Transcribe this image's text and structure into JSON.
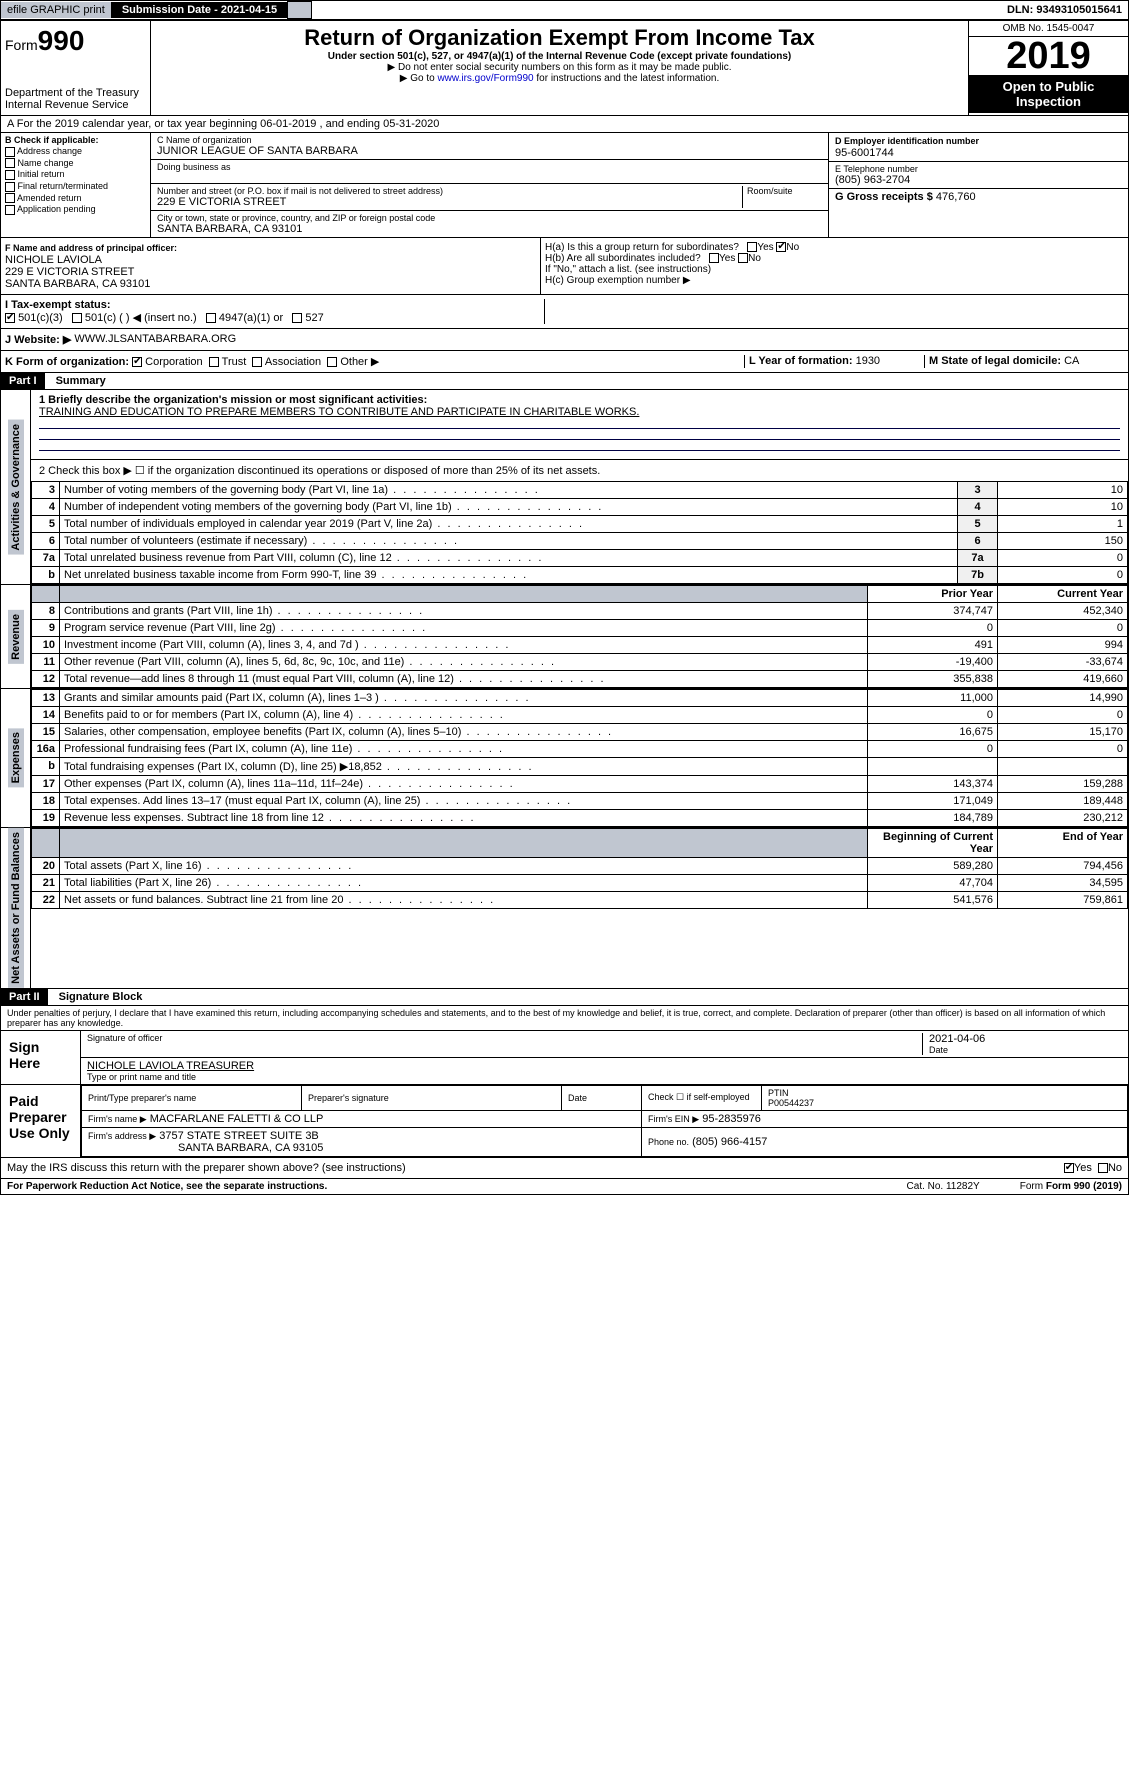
{
  "topbar": {
    "efile": "efile GRAPHIC print",
    "sub_label": "Submission Date - 2021-04-15",
    "dln": "DLN: 93493105015641"
  },
  "header": {
    "form_label": "Form",
    "form_num": "990",
    "dept": "Department of the Treasury",
    "irs": "Internal Revenue Service",
    "title": "Return of Organization Exempt From Income Tax",
    "subtitle": "Under section 501(c), 527, or 4947(a)(1) of the Internal Revenue Code (except private foundations)",
    "note1": "▶ Do not enter social security numbers on this form as it may be made public.",
    "note2_pre": "▶ Go to ",
    "note2_link": "www.irs.gov/Form990",
    "note2_post": " for instructions and the latest information.",
    "omb": "OMB No. 1545-0047",
    "year": "2019",
    "open": "Open to Public Inspection"
  },
  "line_a": "A For the 2019 calendar year, or tax year beginning 06-01-2019  , and ending 05-31-2020",
  "section_b": {
    "label": "B Check if applicable:",
    "items": [
      "Address change",
      "Name change",
      "Initial return",
      "Final return/terminated",
      "Amended return",
      "Application pending"
    ]
  },
  "section_c": {
    "name_label": "C Name of organization",
    "name": "JUNIOR LEAGUE OF SANTA BARBARA",
    "dba_label": "Doing business as",
    "dba": "",
    "addr_label": "Number and street (or P.O. box if mail is not delivered to street address)",
    "room_label": "Room/suite",
    "addr": "229 E VICTORIA STREET",
    "city_label": "City or town, state or province, country, and ZIP or foreign postal code",
    "city": "SANTA BARBARA, CA  93101"
  },
  "section_d": {
    "label": "D Employer identification number",
    "value": "95-6001744"
  },
  "section_e": {
    "label": "E Telephone number",
    "value": "(805) 963-2704"
  },
  "section_g": {
    "label": "G Gross receipts $",
    "value": "476,760"
  },
  "section_f": {
    "label": "F Name and address of principal officer:",
    "name": "NICHOLE LAVIOLA",
    "addr1": "229 E VICTORIA STREET",
    "addr2": "SANTA BARBARA, CA  93101"
  },
  "section_h": {
    "a": "H(a)  Is this a group return for subordinates?",
    "b": "H(b)  Are all subordinates included?",
    "b_note": "If \"No,\" attach a list. (see instructions)",
    "c": "H(c)  Group exemption number ▶"
  },
  "section_i": {
    "label": "I  Tax-exempt status:",
    "opts": [
      "501(c)(3)",
      "501(c) (   ) ◀ (insert no.)",
      "4947(a)(1) or",
      "527"
    ]
  },
  "section_j": {
    "label": "J  Website: ▶",
    "value": "WWW.JLSANTABARBARA.ORG"
  },
  "section_k": {
    "label": "K Form of organization:",
    "opts": [
      "Corporation",
      "Trust",
      "Association",
      "Other ▶"
    ],
    "l_label": "L Year of formation:",
    "l_val": "1930",
    "m_label": "M State of legal domicile:",
    "m_val": "CA"
  },
  "part1": {
    "header": "Part I",
    "title": "Summary",
    "q1_label": "1  Briefly describe the organization's mission or most significant activities:",
    "q1_text": "TRAINING AND EDUCATION TO PREPARE MEMBERS TO CONTRIBUTE AND PARTICIPATE IN CHARITABLE WORKS.",
    "q2": "2  Check this box ▶ ☐  if the organization discontinued its operations or disposed of more than 25% of its net assets.",
    "rows_gov": [
      {
        "n": "3",
        "t": "Number of voting members of the governing body (Part VI, line 1a)",
        "b": "3",
        "v": "10"
      },
      {
        "n": "4",
        "t": "Number of independent voting members of the governing body (Part VI, line 1b)",
        "b": "4",
        "v": "10"
      },
      {
        "n": "5",
        "t": "Total number of individuals employed in calendar year 2019 (Part V, line 2a)",
        "b": "5",
        "v": "1"
      },
      {
        "n": "6",
        "t": "Total number of volunteers (estimate if necessary)",
        "b": "6",
        "v": "150"
      },
      {
        "n": "7a",
        "t": "Total unrelated business revenue from Part VIII, column (C), line 12",
        "b": "7a",
        "v": "0"
      },
      {
        "n": "b",
        "t": "Net unrelated business taxable income from Form 990-T, line 39",
        "b": "7b",
        "v": "0"
      }
    ],
    "col_py": "Prior Year",
    "col_cy": "Current Year",
    "rows_rev": [
      {
        "n": "8",
        "t": "Contributions and grants (Part VIII, line 1h)",
        "py": "374,747",
        "cy": "452,340"
      },
      {
        "n": "9",
        "t": "Program service revenue (Part VIII, line 2g)",
        "py": "0",
        "cy": "0"
      },
      {
        "n": "10",
        "t": "Investment income (Part VIII, column (A), lines 3, 4, and 7d )",
        "py": "491",
        "cy": "994"
      },
      {
        "n": "11",
        "t": "Other revenue (Part VIII, column (A), lines 5, 6d, 8c, 9c, 10c, and 11e)",
        "py": "-19,400",
        "cy": "-33,674"
      },
      {
        "n": "12",
        "t": "Total revenue—add lines 8 through 11 (must equal Part VIII, column (A), line 12)",
        "py": "355,838",
        "cy": "419,660"
      }
    ],
    "rows_exp": [
      {
        "n": "13",
        "t": "Grants and similar amounts paid (Part IX, column (A), lines 1–3 )",
        "py": "11,000",
        "cy": "14,990"
      },
      {
        "n": "14",
        "t": "Benefits paid to or for members (Part IX, column (A), line 4)",
        "py": "0",
        "cy": "0"
      },
      {
        "n": "15",
        "t": "Salaries, other compensation, employee benefits (Part IX, column (A), lines 5–10)",
        "py": "16,675",
        "cy": "15,170"
      },
      {
        "n": "16a",
        "t": "Professional fundraising fees (Part IX, column (A), line 11e)",
        "py": "0",
        "cy": "0"
      },
      {
        "n": "b",
        "t": "Total fundraising expenses (Part IX, column (D), line 25) ▶18,852",
        "py": "",
        "cy": "",
        "shade": true
      },
      {
        "n": "17",
        "t": "Other expenses (Part IX, column (A), lines 11a–11d, 11f–24e)",
        "py": "143,374",
        "cy": "159,288"
      },
      {
        "n": "18",
        "t": "Total expenses. Add lines 13–17 (must equal Part IX, column (A), line 25)",
        "py": "171,049",
        "cy": "189,448"
      },
      {
        "n": "19",
        "t": "Revenue less expenses. Subtract line 18 from line 12",
        "py": "184,789",
        "cy": "230,212"
      }
    ],
    "col_bcy": "Beginning of Current Year",
    "col_eoy": "End of Year",
    "rows_net": [
      {
        "n": "20",
        "t": "Total assets (Part X, line 16)",
        "py": "589,280",
        "cy": "794,456"
      },
      {
        "n": "21",
        "t": "Total liabilities (Part X, line 26)",
        "py": "47,704",
        "cy": "34,595"
      },
      {
        "n": "22",
        "t": "Net assets or fund balances. Subtract line 21 from line 20",
        "py": "541,576",
        "cy": "759,861"
      }
    ],
    "vlabels": {
      "gov": "Activities & Governance",
      "rev": "Revenue",
      "exp": "Expenses",
      "net": "Net Assets or Fund Balances"
    }
  },
  "part2": {
    "header": "Part II",
    "title": "Signature Block",
    "perjury": "Under penalties of perjury, I declare that I have examined this return, including accompanying schedules and statements, and to the best of my knowledge and belief, it is true, correct, and complete. Declaration of preparer (other than officer) is based on all information of which preparer has any knowledge.",
    "sign_here": "Sign Here",
    "sig_officer": "Signature of officer",
    "date": "2021-04-06",
    "date_label": "Date",
    "officer_name": "NICHOLE LAVIOLA  TREASURER",
    "officer_label": "Type or print name and title",
    "paid": "Paid Preparer Use Only",
    "prep_name_label": "Print/Type preparer's name",
    "prep_sig_label": "Preparer's signature",
    "prep_date_label": "Date",
    "check_label": "Check ☐ if self-employed",
    "ptin_label": "PTIN",
    "ptin": "P00544237",
    "firm_name_label": "Firm's name   ▶",
    "firm_name": "MACFARLANE FALETTI & CO LLP",
    "firm_ein_label": "Firm's EIN ▶",
    "firm_ein": "95-2835976",
    "firm_addr_label": "Firm's address ▶",
    "firm_addr1": "3757 STATE STREET SUITE 3B",
    "firm_addr2": "SANTA BARBARA, CA  93105",
    "phone_label": "Phone no.",
    "phone": "(805) 966-4157",
    "discuss": "May the IRS discuss this return with the preparer shown above? (see instructions)"
  },
  "footer": {
    "pra": "For Paperwork Reduction Act Notice, see the separate instructions.",
    "cat": "Cat. No. 11282Y",
    "form": "Form 990 (2019)"
  }
}
